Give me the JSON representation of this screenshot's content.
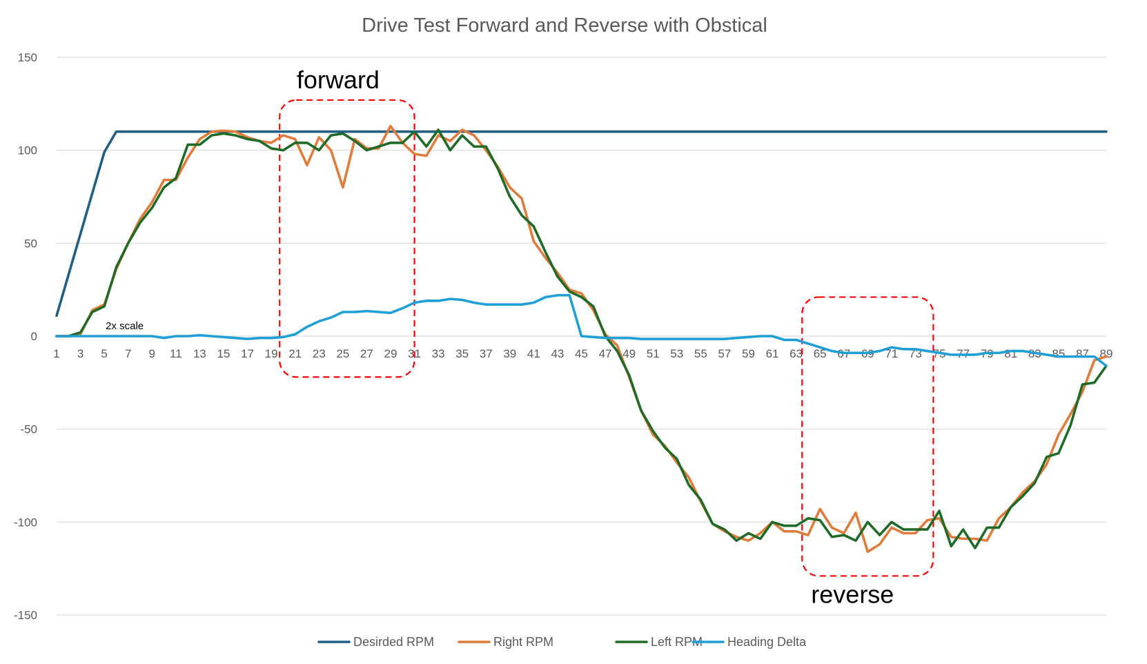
{
  "chart_data": {
    "type": "line",
    "title": "Drive Test Forward and Reverse with Obstical",
    "xlabel": "",
    "ylabel": "",
    "ylim": [
      -150,
      150
    ],
    "yticks": [
      150,
      100,
      50,
      0,
      -50,
      -100,
      -150
    ],
    "xlim": [
      1,
      89
    ],
    "xtick_labels": [
      1,
      3,
      5,
      7,
      9,
      11,
      13,
      15,
      17,
      19,
      21,
      23,
      25,
      27,
      29,
      31,
      33,
      35,
      37,
      39,
      41,
      43,
      45,
      47,
      49,
      51,
      53,
      55,
      57,
      59,
      61,
      63,
      65,
      67,
      69,
      71,
      73,
      75,
      77,
      79,
      81,
      83,
      85,
      87,
      89
    ],
    "grid": "horizontal",
    "legend_position": "bottom",
    "x": [
      1,
      2,
      3,
      4,
      5,
      6,
      7,
      8,
      9,
      10,
      11,
      12,
      13,
      14,
      15,
      16,
      17,
      18,
      19,
      20,
      21,
      22,
      23,
      24,
      25,
      26,
      27,
      28,
      29,
      30,
      31,
      32,
      33,
      34,
      35,
      36,
      37,
      38,
      39,
      40,
      41,
      42,
      43,
      44,
      45,
      46,
      47,
      48,
      49,
      50,
      51,
      52,
      53,
      54,
      55,
      56,
      57,
      58,
      59,
      60,
      61,
      62,
      63,
      64,
      65,
      66,
      67,
      68,
      69,
      70,
      71,
      72,
      73,
      74,
      75,
      76,
      77,
      78,
      79,
      80,
      81,
      82,
      83,
      84,
      85,
      86,
      87,
      88,
      89
    ],
    "series": [
      {
        "name": "Desirded RPM",
        "color": "#1f5f86",
        "values": [
          11,
          33,
          55,
          77,
          99,
          110,
          110,
          110,
          110,
          110,
          110,
          110,
          110,
          110,
          110,
          110,
          110,
          110,
          110,
          110,
          110,
          110,
          110,
          110,
          110,
          110,
          110,
          110,
          110,
          110,
          110,
          110,
          110,
          110,
          110,
          110,
          110,
          110,
          110,
          110,
          110,
          110,
          110,
          110,
          110,
          110,
          110,
          110,
          110,
          110,
          110,
          110,
          110,
          110,
          110,
          110,
          110,
          110,
          110,
          110,
          110,
          110,
          110,
          110,
          110,
          110,
          110,
          110,
          110,
          110,
          110,
          110,
          110,
          110,
          110,
          110,
          110,
          110,
          110,
          110,
          110,
          110,
          110,
          110,
          110,
          110,
          110,
          110,
          110
        ]
      },
      {
        "name": "Right RPM",
        "color": "#e07b39",
        "values": [
          0,
          0,
          1,
          14,
          17,
          36,
          50,
          63,
          72,
          84,
          84,
          96,
          106,
          110,
          110.5,
          110,
          107,
          105,
          104,
          108,
          106,
          92,
          107,
          100,
          80,
          106,
          101,
          101,
          113,
          104,
          98,
          97,
          108,
          105,
          111,
          108,
          100,
          91,
          80,
          74,
          51,
          42,
          34,
          25,
          23,
          14,
          1,
          -5,
          -22,
          -40,
          -53,
          -59,
          -68,
          -76,
          -89,
          -101,
          -105,
          -108,
          -110,
          -106,
          -100,
          -105,
          -105,
          -107,
          -93,
          -103,
          -106,
          -95,
          -116,
          -112,
          -103,
          -106,
          -106,
          -99,
          -98,
          -108,
          -109,
          -109,
          -110,
          -98,
          -92,
          -84,
          -78,
          -69,
          -53,
          -42,
          -30,
          -13,
          -11
        ]
      },
      {
        "name": "Left RPM",
        "color": "#1e6b27",
        "values": [
          0,
          0,
          2,
          13,
          16,
          37,
          50,
          61,
          69,
          80,
          85,
          103,
          103,
          108,
          109,
          108,
          106,
          105,
          101,
          100,
          104,
          104,
          100,
          108,
          109,
          105,
          100,
          102,
          104,
          104,
          110,
          102,
          111,
          100,
          108,
          102,
          102,
          90,
          75,
          65,
          59,
          45,
          32,
          24,
          21,
          16,
          0,
          -8,
          -21,
          -40,
          -51,
          -60,
          -66,
          -80,
          -88,
          -101,
          -104,
          -110,
          -106,
          -109,
          -100,
          -102,
          -102,
          -98,
          -99,
          -108,
          -107,
          -110,
          -100,
          -107,
          -100,
          -104,
          -104,
          -104,
          -94,
          -113,
          -104,
          -114,
          -103,
          -103,
          -92,
          -86,
          -79,
          -65,
          -63,
          -48,
          -26,
          -25,
          -16
        ]
      },
      {
        "name": "Heading Delta",
        "color": "#1ea0d6",
        "values": [
          0,
          0,
          0,
          0,
          0,
          0,
          0,
          0,
          0,
          -1,
          0,
          0,
          0.5,
          0,
          -0.5,
          -1,
          -1.5,
          -1,
          -1,
          -0.5,
          1,
          5,
          8,
          10,
          13,
          13,
          13.5,
          13,
          12.5,
          15,
          18,
          19,
          19,
          20,
          19.5,
          18,
          17,
          17,
          17,
          17,
          18,
          21,
          22,
          22,
          0,
          -0.5,
          -1,
          -1,
          -1,
          -1.5,
          -1.5,
          -1.5,
          -1.5,
          -1.5,
          -1.5,
          -1.5,
          -1.5,
          -1,
          -0.5,
          0,
          0,
          -2,
          -2,
          -4,
          -6,
          -8,
          -9,
          -9,
          -9,
          -8,
          -6,
          -7,
          -7,
          -8,
          -9,
          -10,
          -10,
          -10,
          -9,
          -9,
          -8,
          -8,
          -9,
          -10,
          -11,
          -11,
          -11,
          -11,
          -16
        ]
      }
    ],
    "annotations": [
      {
        "text": "forward",
        "x_range": [
          19.7,
          31
        ],
        "y_range": [
          -22,
          127
        ]
      },
      {
        "text": "reverse",
        "x_range": [
          63.5,
          74.5
        ],
        "y_range": [
          -129,
          21
        ]
      },
      {
        "text": "2x scale",
        "x": 5
      }
    ]
  }
}
